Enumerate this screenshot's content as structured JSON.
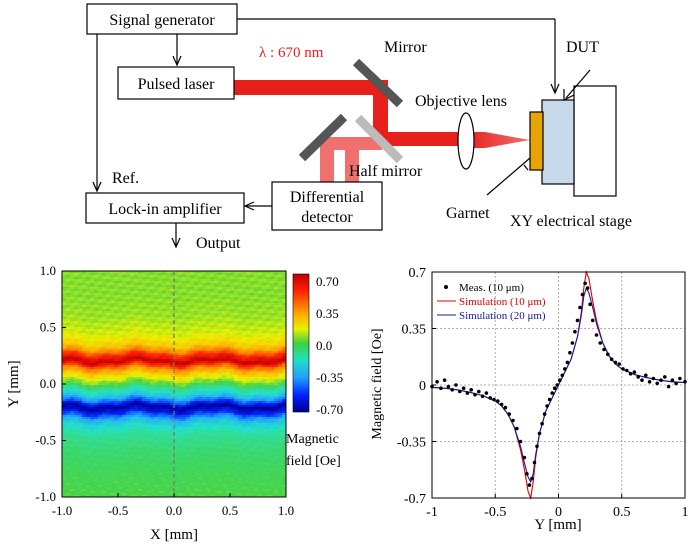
{
  "setup": {
    "signal_generator": "Signal generator",
    "pulsed_laser": "Pulsed laser",
    "wavelength": "λ : 670 nm",
    "mirror": "Mirror",
    "objective_lens": "Objective lens",
    "dut": "DUT",
    "half_mirror": "Half mirror",
    "differential_detector_line1": "Differential",
    "differential_detector_line2": "detector",
    "lock_in_amplifier": "Lock-in amplifier",
    "ref": "Ref.",
    "output": "Output",
    "garnet": "Garnet",
    "xy_stage": "XY electrical stage",
    "colors": {
      "laser": "#e8201c",
      "laser_light": "#f07878",
      "garnet": "#e8a400",
      "dut": "#c9d9ec"
    }
  },
  "colorbar": {
    "ticks": [
      "0.70",
      "0.35",
      "0.0",
      "-0.35",
      "-0.70"
    ],
    "label_line1": "Magnetic",
    "label_line2": "field [Oe]"
  },
  "chart_data": [
    {
      "type": "heatmap",
      "xlabel": "X [mm]",
      "ylabel": "Y [mm]",
      "xlim": [
        -1.0,
        1.0
      ],
      "ylim": [
        -1.0,
        1.0
      ],
      "xticks": [
        "-1.0",
        "-0.5",
        "0.0",
        "0.5",
        "1.0"
      ],
      "yticks": [
        "1.0",
        "0.5",
        "0.0",
        "-0.5",
        "-1.0"
      ],
      "color_range": [
        -0.7,
        0.7
      ],
      "profile_y": [
        -1.0,
        -0.8,
        -0.6,
        -0.45,
        -0.35,
        -0.3,
        -0.25,
        -0.2,
        -0.15,
        -0.1,
        0.0,
        0.1,
        0.15,
        0.2,
        0.25,
        0.3,
        0.35,
        0.45,
        0.6,
        0.8,
        1.0
      ],
      "profile_field": [
        0.0,
        -0.02,
        -0.05,
        -0.1,
        -0.22,
        -0.35,
        -0.55,
        -0.7,
        -0.45,
        -0.25,
        0.0,
        0.25,
        0.4,
        0.7,
        0.55,
        0.35,
        0.22,
        0.12,
        0.07,
        0.05,
        0.05
      ],
      "dashed_line_x": 0.0,
      "grid": false
    },
    {
      "type": "line",
      "xlabel": "Y [mm]",
      "ylabel": "Magnetic field [Oe]",
      "xlim": [
        -1,
        1
      ],
      "ylim": [
        -0.7,
        0.7
      ],
      "xticks": [
        "-1",
        "-0.5",
        "0",
        "0.5",
        "1"
      ],
      "yticks": [
        "0.7",
        "0.35",
        "0",
        "-0.35",
        "-0.7"
      ],
      "grid": true,
      "legend_position": "top-left",
      "series": [
        {
          "name": "Meas. (10 μm)",
          "style": "markers",
          "color": "#000000",
          "x": [
            -1.0,
            -0.96,
            -0.93,
            -0.9,
            -0.87,
            -0.84,
            -0.81,
            -0.78,
            -0.75,
            -0.72,
            -0.69,
            -0.66,
            -0.63,
            -0.6,
            -0.57,
            -0.54,
            -0.51,
            -0.48,
            -0.45,
            -0.42,
            -0.39,
            -0.36,
            -0.33,
            -0.3,
            -0.27,
            -0.25,
            -0.23,
            -0.21,
            -0.19,
            -0.17,
            -0.15,
            -0.13,
            -0.11,
            -0.09,
            -0.07,
            -0.05,
            -0.03,
            -0.01,
            0.01,
            0.03,
            0.05,
            0.07,
            0.09,
            0.11,
            0.13,
            0.15,
            0.17,
            0.19,
            0.21,
            0.23,
            0.25,
            0.27,
            0.3,
            0.33,
            0.36,
            0.39,
            0.42,
            0.45,
            0.48,
            0.51,
            0.54,
            0.57,
            0.6,
            0.63,
            0.66,
            0.69,
            0.72,
            0.75,
            0.78,
            0.81,
            0.84,
            0.87,
            0.9,
            0.93,
            0.96,
            1.0
          ],
          "y": [
            -0.01,
            0.02,
            -0.02,
            0.03,
            -0.01,
            -0.03,
            0.0,
            -0.04,
            -0.02,
            -0.05,
            -0.03,
            -0.06,
            -0.04,
            -0.07,
            -0.05,
            -0.08,
            -0.09,
            -0.1,
            -0.12,
            -0.14,
            -0.18,
            -0.22,
            -0.27,
            -0.35,
            -0.45,
            -0.55,
            -0.62,
            -0.58,
            -0.48,
            -0.38,
            -0.3,
            -0.24,
            -0.18,
            -0.13,
            -0.09,
            -0.05,
            -0.02,
            0.0,
            0.03,
            0.06,
            0.1,
            0.14,
            0.2,
            0.26,
            0.33,
            0.4,
            0.48,
            0.56,
            0.63,
            0.6,
            0.5,
            0.4,
            0.31,
            0.26,
            0.22,
            0.19,
            0.16,
            0.14,
            0.13,
            0.1,
            0.09,
            0.07,
            0.08,
            0.05,
            0.03,
            0.06,
            0.02,
            0.04,
            0.01,
            0.03,
            0.05,
            -0.01,
            0.03,
            0.01,
            0.04,
            0.02
          ]
        },
        {
          "name": "Simulation (10 μm)",
          "style": "line",
          "color": "#e00000",
          "x": [
            -1.0,
            -0.9,
            -0.8,
            -0.7,
            -0.6,
            -0.5,
            -0.45,
            -0.4,
            -0.35,
            -0.3,
            -0.27,
            -0.24,
            -0.22,
            -0.2,
            -0.18,
            -0.15,
            -0.1,
            -0.05,
            0.0,
            0.05,
            0.1,
            0.15,
            0.18,
            0.2,
            0.22,
            0.24,
            0.27,
            0.3,
            0.35,
            0.4,
            0.45,
            0.5,
            0.6,
            0.7,
            0.8,
            0.9,
            1.0
          ],
          "y": [
            -0.015,
            -0.02,
            -0.03,
            -0.045,
            -0.065,
            -0.1,
            -0.13,
            -0.18,
            -0.26,
            -0.4,
            -0.52,
            -0.66,
            -0.7,
            -0.6,
            -0.45,
            -0.3,
            -0.16,
            -0.08,
            0.0,
            0.08,
            0.16,
            0.3,
            0.45,
            0.6,
            0.7,
            0.66,
            0.52,
            0.4,
            0.26,
            0.18,
            0.13,
            0.1,
            0.065,
            0.045,
            0.03,
            0.02,
            0.015
          ]
        },
        {
          "name": "Simulation (20 μm)",
          "style": "line",
          "color": "#1a1aa0",
          "x": [
            -1.0,
            -0.9,
            -0.8,
            -0.7,
            -0.6,
            -0.5,
            -0.45,
            -0.4,
            -0.35,
            -0.3,
            -0.27,
            -0.24,
            -0.22,
            -0.2,
            -0.18,
            -0.15,
            -0.1,
            -0.05,
            0.0,
            0.05,
            0.1,
            0.15,
            0.18,
            0.2,
            0.22,
            0.24,
            0.27,
            0.3,
            0.35,
            0.4,
            0.45,
            0.5,
            0.6,
            0.7,
            0.8,
            0.9,
            1.0
          ],
          "y": [
            -0.015,
            -0.02,
            -0.03,
            -0.045,
            -0.065,
            -0.1,
            -0.13,
            -0.18,
            -0.26,
            -0.38,
            -0.48,
            -0.57,
            -0.6,
            -0.55,
            -0.43,
            -0.3,
            -0.16,
            -0.08,
            0.0,
            0.08,
            0.16,
            0.3,
            0.43,
            0.55,
            0.6,
            0.57,
            0.48,
            0.38,
            0.26,
            0.18,
            0.13,
            0.1,
            0.065,
            0.045,
            0.03,
            0.02,
            0.015
          ]
        }
      ]
    }
  ]
}
